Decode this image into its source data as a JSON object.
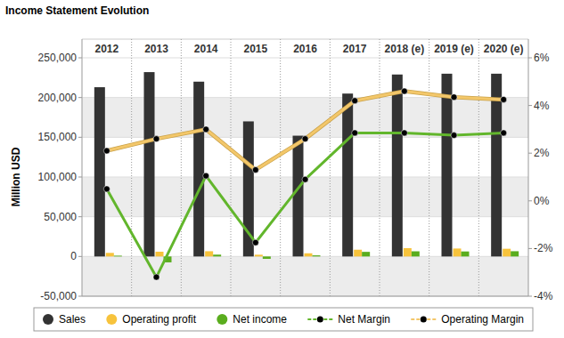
{
  "chart_data": {
    "type": "bar",
    "title": "Income Statement Evolution",
    "y_label": "Million USD",
    "categories": [
      "2012",
      "2013",
      "2014",
      "2015",
      "2016",
      "2017",
      "2018 (e)",
      "2019 (e)",
      "2020 (e)"
    ],
    "series": [
      {
        "name": "Sales",
        "type": "bar",
        "color": "#333333",
        "values": [
          213000,
          232000,
          220000,
          170000,
          152000,
          205000,
          229000,
          230000,
          230000
        ]
      },
      {
        "name": "Operating profit",
        "type": "bar",
        "color": "#f7c33c",
        "values": [
          4500,
          6000,
          6600,
          2200,
          4000,
          8500,
          10500,
          10000,
          9700
        ]
      },
      {
        "name": "Net income",
        "type": "bar",
        "color": "#5aad1e",
        "values": [
          1000,
          -7400,
          2300,
          -3000,
          1400,
          5800,
          6500,
          6300,
          6600
        ]
      },
      {
        "name": "Net Margin",
        "type": "line",
        "axis": "y2",
        "color": "#62b62c",
        "marker": "circle",
        "values": [
          0.5,
          -3.2,
          1.05,
          -1.75,
          0.9,
          2.85,
          2.85,
          2.75,
          2.85
        ]
      },
      {
        "name": "Operating Margin",
        "type": "line",
        "axis": "y2",
        "color": "#f3c76a",
        "marker": "circle",
        "values": [
          2.1,
          2.6,
          3.0,
          1.3,
          2.6,
          4.2,
          4.6,
          4.35,
          4.25
        ]
      }
    ],
    "ylim": [
      -50000,
      250000
    ],
    "yticks": [
      {
        "value": -50000,
        "label": "-50,000"
      },
      0,
      {
        "value": 50000,
        "label": "50,000"
      },
      {
        "value": 100000,
        "label": "100,000"
      },
      {
        "value": 150000,
        "label": "150,000"
      },
      {
        "value": 200000,
        "label": "200,000"
      },
      {
        "value": 250000,
        "label": "250,000"
      }
    ],
    "y2lim": [
      -4,
      6
    ],
    "y2ticks": [
      {
        "value": -4,
        "label": "-4%"
      },
      {
        "value": -2,
        "label": "-2%"
      },
      {
        "value": 0,
        "label": "0%"
      },
      {
        "value": 2,
        "label": "2%"
      },
      {
        "value": 4,
        "label": "4%"
      },
      {
        "value": 6,
        "label": "6%"
      }
    ],
    "grid": true,
    "legend": "bottom"
  }
}
